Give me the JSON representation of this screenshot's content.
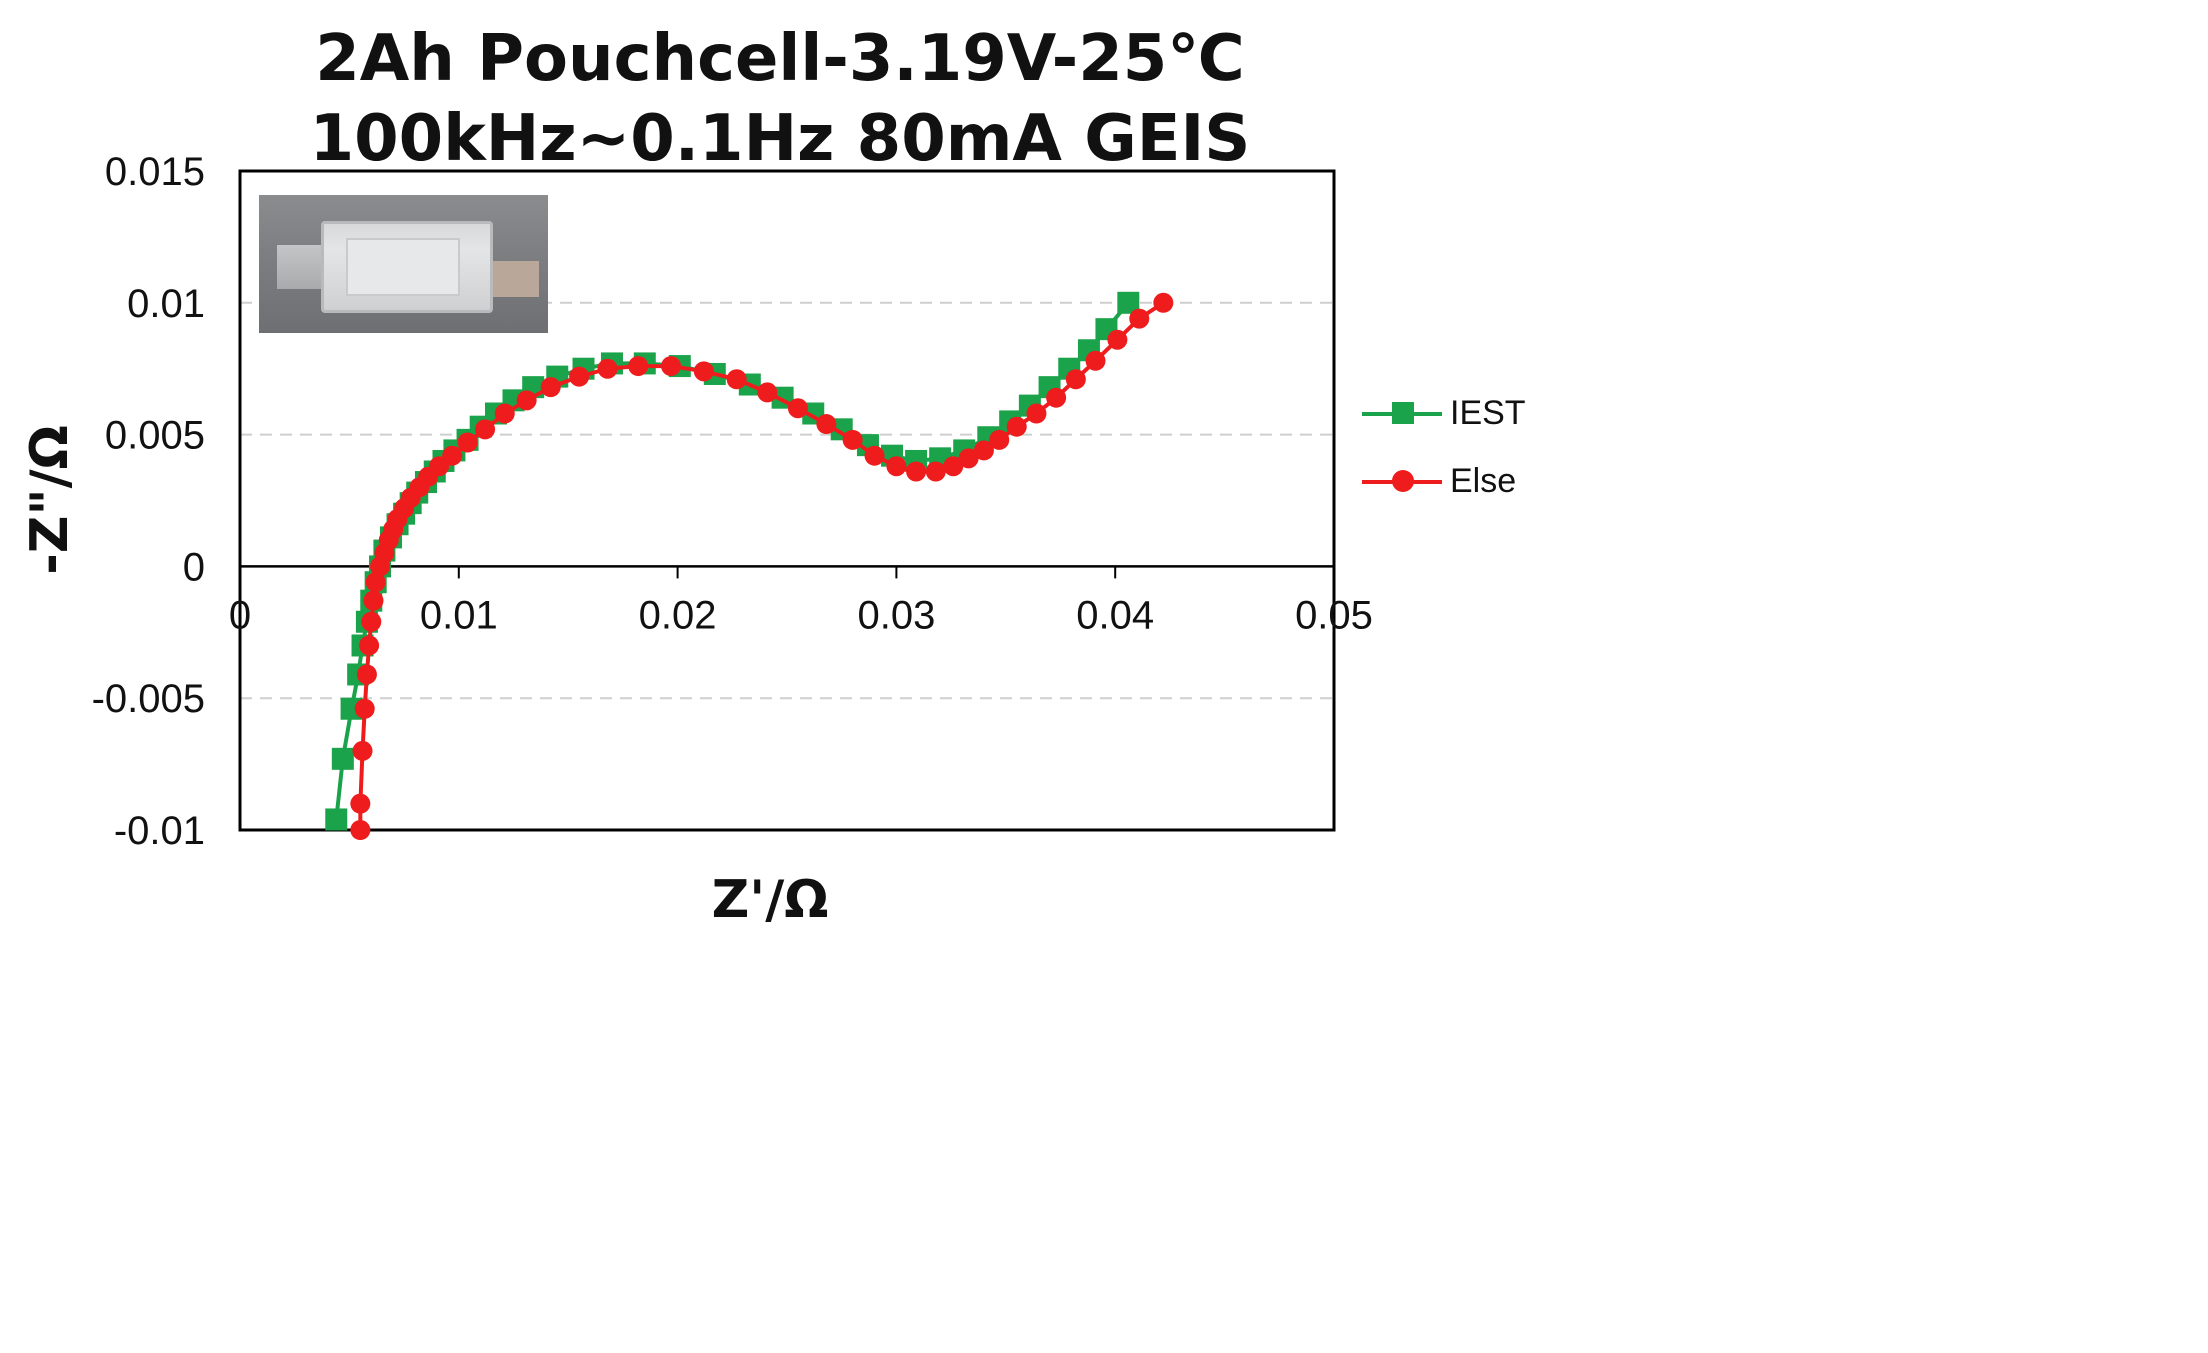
{
  "chart_data": {
    "type": "scatter",
    "title": "2Ah Pouchcell-3.19V-25℃",
    "subtitle": "100kHz~0.1Hz 80mA GEIS",
    "xlabel": "Z'/Ω",
    "ylabel": "-Z\"/Ω",
    "xlim": [
      0,
      0.05
    ],
    "ylim": [
      -0.01,
      0.015
    ],
    "x_ticks": [
      "0",
      "0.01",
      "0.02",
      "0.03",
      "0.04",
      "0.05"
    ],
    "y_ticks": [
      "-0.01",
      "-0.005",
      "0",
      "0.005",
      "0.01",
      "0.015"
    ],
    "grid": "horizontal dashed",
    "legend_position": "right",
    "series": [
      {
        "name": "IEST",
        "color": "#1aa34a",
        "marker": "square",
        "x": [
          0.0044,
          0.0047,
          0.0051,
          0.0054,
          0.0056,
          0.0058,
          0.006,
          0.0062,
          0.0064,
          0.0066,
          0.0069,
          0.0072,
          0.0075,
          0.0078,
          0.0081,
          0.0085,
          0.0089,
          0.0093,
          0.0098,
          0.0104,
          0.011,
          0.0117,
          0.0125,
          0.0134,
          0.0145,
          0.0157,
          0.017,
          0.0185,
          0.0201,
          0.0217,
          0.0233,
          0.0248,
          0.0262,
          0.0275,
          0.0287,
          0.0298,
          0.0309,
          0.032,
          0.0331,
          0.0342,
          0.0352,
          0.0361,
          0.037,
          0.0379,
          0.0388,
          0.0396,
          0.0406
        ],
        "y": [
          -0.0096,
          -0.0073,
          -0.0054,
          -0.0041,
          -0.003,
          -0.0021,
          -0.0013,
          -0.0006,
          0.0,
          0.0006,
          0.0011,
          0.0016,
          0.002,
          0.0024,
          0.0028,
          0.0032,
          0.0036,
          0.004,
          0.0044,
          0.0048,
          0.0053,
          0.0058,
          0.0063,
          0.0068,
          0.0072,
          0.0075,
          0.0077,
          0.0077,
          0.0076,
          0.0073,
          0.0069,
          0.0064,
          0.0058,
          0.0052,
          0.0046,
          0.0042,
          0.004,
          0.0041,
          0.0044,
          0.0049,
          0.0055,
          0.0061,
          0.0068,
          0.0075,
          0.0082,
          0.009,
          0.01
        ]
      },
      {
        "name": "Else",
        "color": "#ee1c1c",
        "marker": "circle",
        "x": [
          0.0055,
          0.0055,
          0.0056,
          0.0057,
          0.0058,
          0.0059,
          0.006,
          0.0061,
          0.0062,
          0.0064,
          0.0066,
          0.0068,
          0.007,
          0.0072,
          0.0075,
          0.0078,
          0.0082,
          0.0086,
          0.0091,
          0.0097,
          0.0104,
          0.0112,
          0.0121,
          0.0131,
          0.0142,
          0.0155,
          0.0168,
          0.0182,
          0.0197,
          0.0212,
          0.0227,
          0.0241,
          0.0255,
          0.0268,
          0.028,
          0.029,
          0.03,
          0.0309,
          0.0318,
          0.0326,
          0.0333,
          0.034,
          0.0347,
          0.0355,
          0.0364,
          0.0373,
          0.0382,
          0.0391,
          0.0401,
          0.0411,
          0.0422
        ],
        "y": [
          -0.01,
          -0.009,
          -0.007,
          -0.0054,
          -0.0041,
          -0.003,
          -0.0021,
          -0.0013,
          -0.0006,
          0.0,
          0.0005,
          0.001,
          0.0014,
          0.0018,
          0.0022,
          0.0026,
          0.003,
          0.0034,
          0.0038,
          0.0042,
          0.0047,
          0.0052,
          0.0058,
          0.0063,
          0.0068,
          0.0072,
          0.0075,
          0.0076,
          0.0076,
          0.0074,
          0.0071,
          0.0066,
          0.006,
          0.0054,
          0.0048,
          0.0042,
          0.0038,
          0.0036,
          0.0036,
          0.0038,
          0.0041,
          0.0044,
          0.0048,
          0.0053,
          0.0058,
          0.0064,
          0.0071,
          0.0078,
          0.0086,
          0.0094,
          0.01
        ]
      }
    ]
  }
}
